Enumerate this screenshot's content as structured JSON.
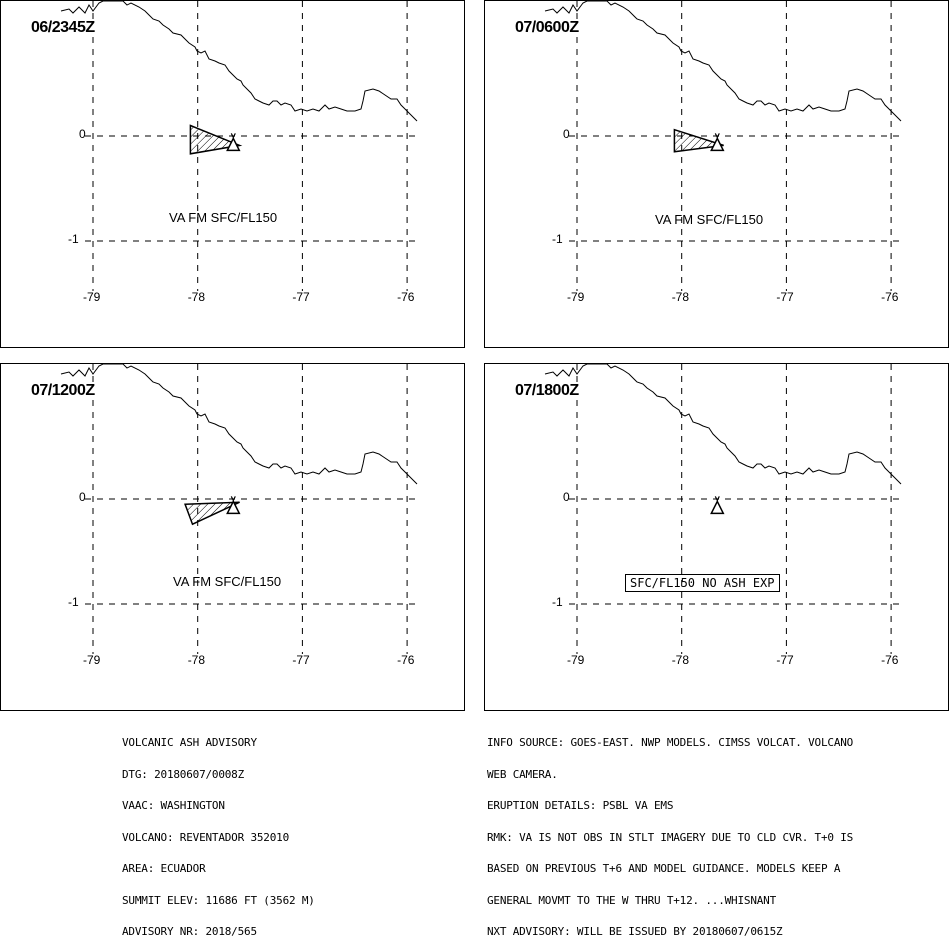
{
  "panels": [
    {
      "time": "06/2345Z",
      "label": "VA FM SFC/FL150",
      "boxed": false,
      "plume": [
        [
          -78.07,
          0.1
        ],
        [
          -77.6,
          -0.09
        ],
        [
          -78.07,
          -0.17
        ]
      ]
    },
    {
      "time": "07/0600Z",
      "label": "VA FM SFC/FL150",
      "boxed": false,
      "plume": [
        [
          -78.07,
          0.06
        ],
        [
          -77.6,
          -0.09
        ],
        [
          -78.07,
          -0.15
        ]
      ]
    },
    {
      "time": "07/1200Z",
      "label": "VA FM SFC/FL150",
      "boxed": false,
      "plume": [
        [
          -78.12,
          -0.05
        ],
        [
          -77.6,
          -0.03
        ],
        [
          -78.05,
          -0.24
        ]
      ]
    },
    {
      "time": "07/1800Z",
      "label": "SFC/FL150 NO ASH EXP",
      "boxed": true,
      "plume": null
    }
  ],
  "axes": {
    "x_ticks": [
      "-79",
      "-78",
      "-77",
      "-76"
    ],
    "y_ticks": [
      "0",
      "-1"
    ],
    "x_values": [
      -79,
      -78,
      -77,
      -76
    ],
    "y_values": [
      0,
      -1
    ]
  },
  "volcano": {
    "lon": -77.66,
    "lat": -0.08
  },
  "advisory_left": [
    "VOLCANIC ASH ADVISORY",
    "DTG: 20180607/0008Z",
    "VAAC: WASHINGTON",
    "VOLCANO: REVENTADOR 352010",
    "AREA: ECUADOR",
    "SUMMIT ELEV: 11686 FT (3562 M)",
    "ADVISORY NR: 2018/565"
  ],
  "advisory_right": [
    "INFO SOURCE: GOES-EAST. NWP MODELS. CIMSS VOLCAT. VOLCANO",
    "WEB CAMERA.",
    "ERUPTION DETAILS: PSBL VA EMS",
    "RMK: VA IS NOT OBS IN STLT IMAGERY DUE TO CLD CVR. T+0 IS",
    "BASED ON PREVIOUS T+6 AND MODEL GUIDANCE. MODELS KEEP A",
    "GENERAL MOVMT TO THE W THRU T+12. ...WHISNANT",
    "NXT ADVISORY: WILL BE ISSUED BY 20180607/0615Z"
  ]
}
